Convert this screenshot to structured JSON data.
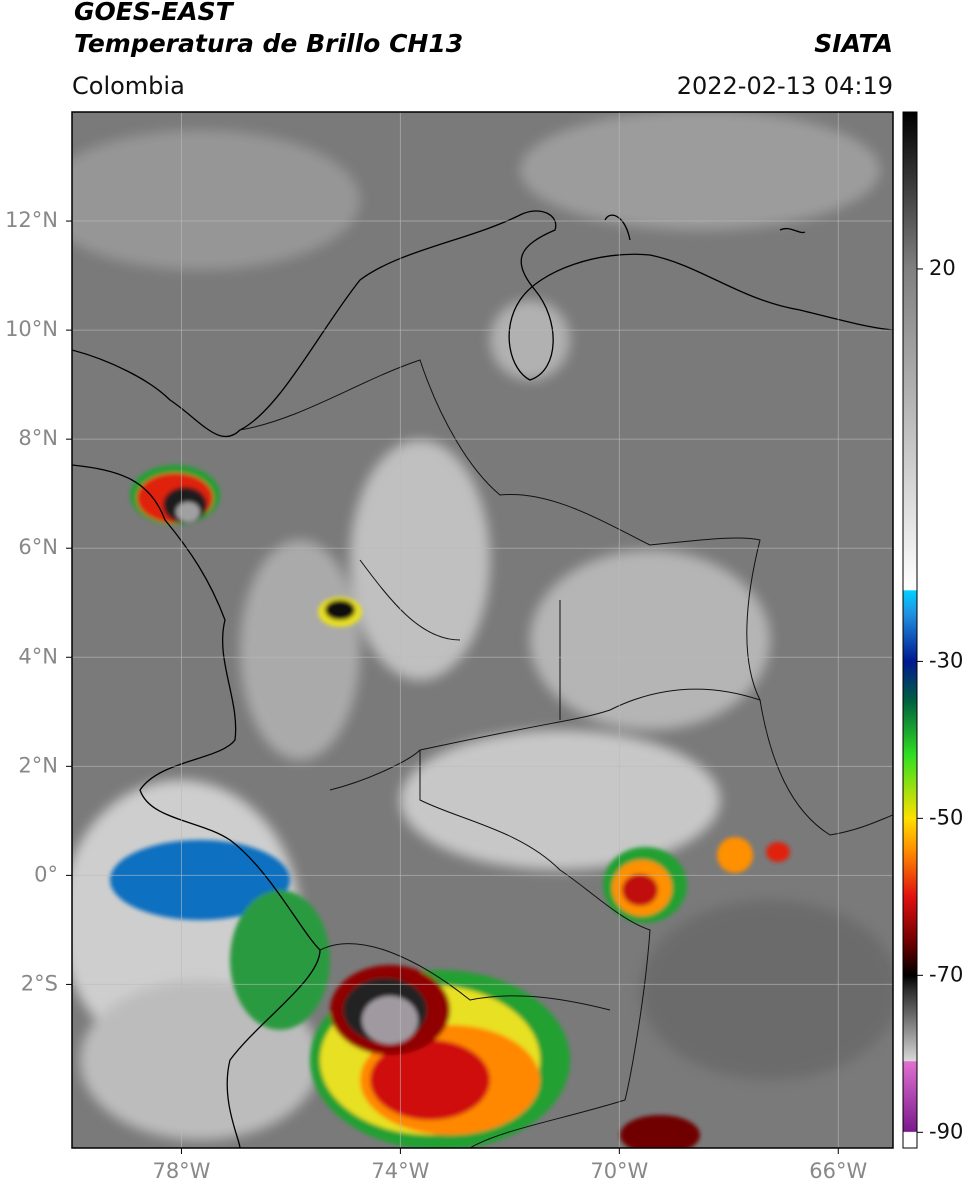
{
  "header": {
    "title": "GOES-EAST",
    "subtitle": "Temperatura de Brillo CH13",
    "brand": "SIATA",
    "region": "Colombia",
    "timestamp": "2022-02-13 04:19"
  },
  "map": {
    "xlim": [
      -80,
      -65
    ],
    "ylim": [
      -5,
      14
    ],
    "xticks": [
      {
        "value": -78,
        "label": "78°W"
      },
      {
        "value": -74,
        "label": "74°W"
      },
      {
        "value": -70,
        "label": "70°W"
      },
      {
        "value": -66,
        "label": "66°W"
      }
    ],
    "yticks": [
      {
        "value": 12,
        "label": "12°N"
      },
      {
        "value": 10,
        "label": "10°N"
      },
      {
        "value": 8,
        "label": "8°N"
      },
      {
        "value": 6,
        "label": "6°N"
      },
      {
        "value": 4,
        "label": "4°N"
      },
      {
        "value": 2,
        "label": "2°N"
      },
      {
        "value": 0,
        "label": "0°"
      },
      {
        "value": -2,
        "label": "2°S"
      }
    ],
    "grid": true
  },
  "colorbar": {
    "ylim": [
      -92,
      40
    ],
    "ticks": [
      20,
      -30,
      -50,
      -70,
      -90
    ],
    "stops": [
      {
        "value": -92,
        "color": "#ffffff"
      },
      {
        "value": -90,
        "color": "#ffffff"
      },
      {
        "value": -89.9,
        "color": "#7a1a8c"
      },
      {
        "value": -81,
        "color": "#e070d0"
      },
      {
        "value": -80.9,
        "color": "#d8d8d8"
      },
      {
        "value": -72,
        "color": "#303030"
      },
      {
        "value": -70,
        "color": "#000000"
      },
      {
        "value": -66,
        "color": "#6a0000"
      },
      {
        "value": -60,
        "color": "#e01010"
      },
      {
        "value": -54,
        "color": "#ff9000"
      },
      {
        "value": -50,
        "color": "#ffe000"
      },
      {
        "value": -42,
        "color": "#30e020"
      },
      {
        "value": -35,
        "color": "#006040"
      },
      {
        "value": -30,
        "color": "#001890"
      },
      {
        "value": -24,
        "color": "#2090e0"
      },
      {
        "value": -21,
        "color": "#00d0ff"
      },
      {
        "value": -20.9,
        "color": "#ffffff"
      },
      {
        "value": 20,
        "color": "#808080"
      },
      {
        "value": 40,
        "color": "#000000"
      }
    ]
  }
}
